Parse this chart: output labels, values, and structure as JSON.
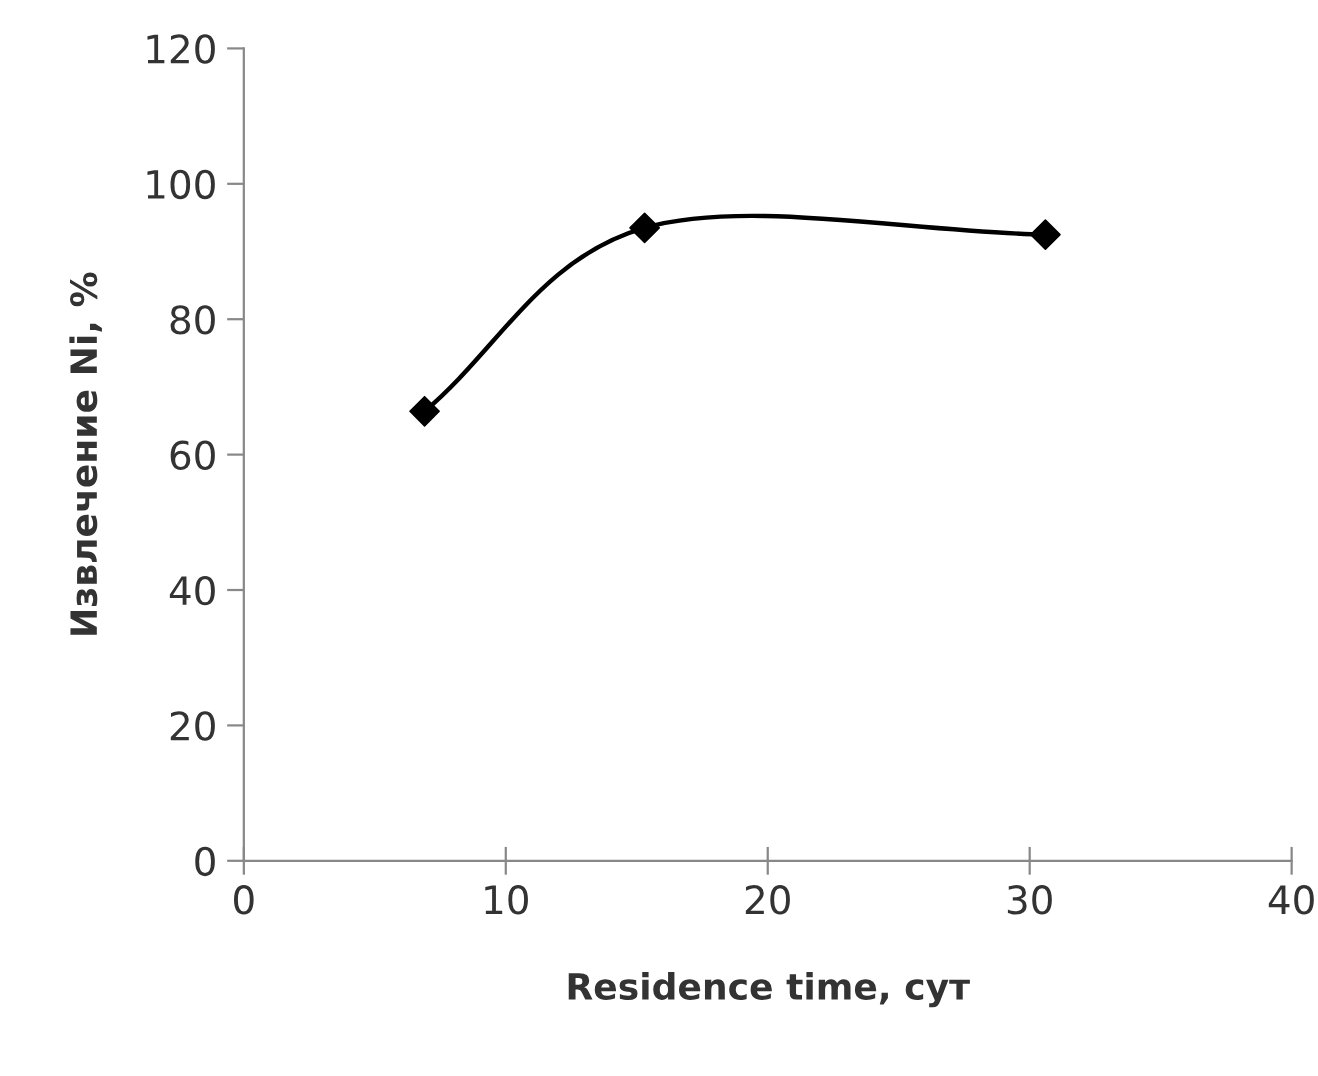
{
  "chart_data": {
    "type": "line",
    "xlabel": "Residence time, сут",
    "ylabel": "Извлечение Ni, %",
    "x": [
      6.9,
      15.3,
      30.6
    ],
    "series": [
      {
        "color": "#000000",
        "values": [
          66.4,
          93.5,
          92.5
        ]
      }
    ],
    "xlim": [
      0,
      40
    ],
    "xticks": [
      0,
      10,
      20,
      30,
      40
    ],
    "ylim": [
      0,
      120
    ],
    "yticks": [
      0,
      20,
      40,
      60,
      80,
      100,
      120
    ],
    "marker": "diamond",
    "line_style": "solid",
    "grid": false,
    "legend": false
  }
}
